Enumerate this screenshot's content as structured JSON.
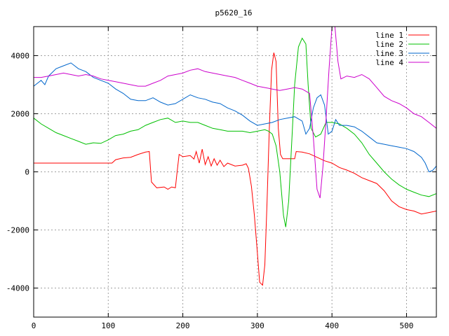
{
  "chart_data": {
    "type": "line",
    "title": "p5620_16",
    "xlabel": "",
    "ylabel": "",
    "xlim": [
      0,
      540
    ],
    "ylim": [
      -5000,
      5000
    ],
    "xticks": [
      0,
      100,
      200,
      300,
      400,
      500
    ],
    "yticks": [
      -4000,
      -2000,
      0,
      2000,
      4000
    ],
    "grid": true,
    "legend_position": "top-right",
    "series": [
      {
        "name": "line 1",
        "color": "#ff0000",
        "points": [
          [
            0,
            300
          ],
          [
            100,
            300
          ],
          [
            105,
            300
          ],
          [
            110,
            420
          ],
          [
            120,
            480
          ],
          [
            130,
            500
          ],
          [
            140,
            600
          ],
          [
            150,
            680
          ],
          [
            155,
            700
          ],
          [
            158,
            -350
          ],
          [
            165,
            -550
          ],
          [
            175,
            -520
          ],
          [
            180,
            -600
          ],
          [
            185,
            -520
          ],
          [
            190,
            -550
          ],
          [
            192,
            -80
          ],
          [
            195,
            600
          ],
          [
            200,
            520
          ],
          [
            210,
            560
          ],
          [
            215,
            440
          ],
          [
            218,
            700
          ],
          [
            222,
            300
          ],
          [
            226,
            780
          ],
          [
            230,
            250
          ],
          [
            234,
            520
          ],
          [
            238,
            200
          ],
          [
            242,
            450
          ],
          [
            246,
            230
          ],
          [
            250,
            400
          ],
          [
            255,
            180
          ],
          [
            260,
            300
          ],
          [
            270,
            200
          ],
          [
            280,
            230
          ],
          [
            285,
            280
          ],
          [
            288,
            120
          ],
          [
            292,
            -500
          ],
          [
            296,
            -1500
          ],
          [
            300,
            -2800
          ],
          [
            303,
            -3800
          ],
          [
            307,
            -3900
          ],
          [
            310,
            -3200
          ],
          [
            313,
            -1000
          ],
          [
            316,
            1500
          ],
          [
            319,
            3500
          ],
          [
            322,
            4100
          ],
          [
            325,
            3800
          ],
          [
            328,
            1500
          ],
          [
            331,
            600
          ],
          [
            334,
            450
          ],
          [
            350,
            450
          ],
          [
            352,
            700
          ],
          [
            360,
            680
          ],
          [
            370,
            620
          ],
          [
            380,
            500
          ],
          [
            390,
            380
          ],
          [
            400,
            300
          ],
          [
            410,
            150
          ],
          [
            420,
            60
          ],
          [
            430,
            -50
          ],
          [
            440,
            -200
          ],
          [
            450,
            -300
          ],
          [
            460,
            -400
          ],
          [
            470,
            -650
          ],
          [
            480,
            -1000
          ],
          [
            490,
            -1200
          ],
          [
            500,
            -1300
          ],
          [
            510,
            -1350
          ],
          [
            520,
            -1450
          ],
          [
            530,
            -1400
          ],
          [
            540,
            -1350
          ]
        ]
      },
      {
        "name": "line 2",
        "color": "#00c000",
        "points": [
          [
            0,
            1850
          ],
          [
            10,
            1650
          ],
          [
            20,
            1500
          ],
          [
            30,
            1350
          ],
          [
            40,
            1250
          ],
          [
            50,
            1150
          ],
          [
            60,
            1050
          ],
          [
            70,
            950
          ],
          [
            80,
            1000
          ],
          [
            90,
            980
          ],
          [
            100,
            1100
          ],
          [
            110,
            1250
          ],
          [
            120,
            1300
          ],
          [
            130,
            1400
          ],
          [
            140,
            1450
          ],
          [
            150,
            1600
          ],
          [
            160,
            1700
          ],
          [
            170,
            1800
          ],
          [
            180,
            1850
          ],
          [
            190,
            1700
          ],
          [
            200,
            1750
          ],
          [
            210,
            1700
          ],
          [
            220,
            1700
          ],
          [
            230,
            1600
          ],
          [
            240,
            1500
          ],
          [
            250,
            1450
          ],
          [
            260,
            1400
          ],
          [
            270,
            1400
          ],
          [
            280,
            1400
          ],
          [
            290,
            1350
          ],
          [
            300,
            1400
          ],
          [
            310,
            1450
          ],
          [
            315,
            1400
          ],
          [
            320,
            1300
          ],
          [
            325,
            900
          ],
          [
            330,
            0
          ],
          [
            335,
            -1500
          ],
          [
            338,
            -1900
          ],
          [
            342,
            -1000
          ],
          [
            346,
            1000
          ],
          [
            350,
            3000
          ],
          [
            355,
            4300
          ],
          [
            360,
            4600
          ],
          [
            365,
            4400
          ],
          [
            368,
            3000
          ],
          [
            372,
            1500
          ],
          [
            378,
            1200
          ],
          [
            385,
            1300
          ],
          [
            392,
            1700
          ],
          [
            400,
            1700
          ],
          [
            410,
            1650
          ],
          [
            420,
            1500
          ],
          [
            430,
            1300
          ],
          [
            440,
            1000
          ],
          [
            450,
            600
          ],
          [
            460,
            300
          ],
          [
            470,
            0
          ],
          [
            480,
            -250
          ],
          [
            490,
            -450
          ],
          [
            500,
            -600
          ],
          [
            510,
            -700
          ],
          [
            520,
            -800
          ],
          [
            530,
            -850
          ],
          [
            540,
            -750
          ]
        ]
      },
      {
        "name": "line 3",
        "color": "#0066cc",
        "points": [
          [
            0,
            2950
          ],
          [
            10,
            3150
          ],
          [
            15,
            3000
          ],
          [
            20,
            3300
          ],
          [
            30,
            3550
          ],
          [
            40,
            3650
          ],
          [
            50,
            3750
          ],
          [
            60,
            3550
          ],
          [
            70,
            3450
          ],
          [
            80,
            3250
          ],
          [
            90,
            3150
          ],
          [
            100,
            3050
          ],
          [
            110,
            2850
          ],
          [
            120,
            2700
          ],
          [
            130,
            2500
          ],
          [
            140,
            2450
          ],
          [
            150,
            2450
          ],
          [
            160,
            2550
          ],
          [
            170,
            2400
          ],
          [
            180,
            2300
          ],
          [
            190,
            2350
          ],
          [
            200,
            2500
          ],
          [
            210,
            2650
          ],
          [
            220,
            2550
          ],
          [
            230,
            2500
          ],
          [
            240,
            2400
          ],
          [
            250,
            2350
          ],
          [
            260,
            2200
          ],
          [
            270,
            2100
          ],
          [
            280,
            1950
          ],
          [
            290,
            1750
          ],
          [
            300,
            1600
          ],
          [
            310,
            1650
          ],
          [
            320,
            1700
          ],
          [
            330,
            1800
          ],
          [
            340,
            1850
          ],
          [
            350,
            1900
          ],
          [
            360,
            1750
          ],
          [
            365,
            1300
          ],
          [
            370,
            1500
          ],
          [
            375,
            2200
          ],
          [
            380,
            2550
          ],
          [
            385,
            2650
          ],
          [
            390,
            2300
          ],
          [
            395,
            1300
          ],
          [
            400,
            1400
          ],
          [
            405,
            1800
          ],
          [
            410,
            1600
          ],
          [
            420,
            1600
          ],
          [
            430,
            1550
          ],
          [
            440,
            1400
          ],
          [
            450,
            1200
          ],
          [
            460,
            1000
          ],
          [
            470,
            950
          ],
          [
            480,
            900
          ],
          [
            490,
            850
          ],
          [
            500,
            800
          ],
          [
            510,
            700
          ],
          [
            520,
            500
          ],
          [
            525,
            300
          ],
          [
            530,
            0
          ],
          [
            535,
            50
          ],
          [
            540,
            200
          ]
        ]
      },
      {
        "name": "line 4",
        "color": "#cc00cc",
        "points": [
          [
            0,
            3250
          ],
          [
            10,
            3250
          ],
          [
            20,
            3300
          ],
          [
            30,
            3350
          ],
          [
            40,
            3400
          ],
          [
            50,
            3350
          ],
          [
            60,
            3300
          ],
          [
            70,
            3350
          ],
          [
            80,
            3300
          ],
          [
            90,
            3200
          ],
          [
            100,
            3150
          ],
          [
            110,
            3100
          ],
          [
            120,
            3050
          ],
          [
            130,
            3000
          ],
          [
            140,
            2950
          ],
          [
            150,
            2950
          ],
          [
            160,
            3050
          ],
          [
            170,
            3150
          ],
          [
            180,
            3300
          ],
          [
            190,
            3350
          ],
          [
            200,
            3400
          ],
          [
            210,
            3500
          ],
          [
            220,
            3550
          ],
          [
            230,
            3450
          ],
          [
            240,
            3400
          ],
          [
            250,
            3350
          ],
          [
            260,
            3300
          ],
          [
            270,
            3250
          ],
          [
            280,
            3150
          ],
          [
            290,
            3050
          ],
          [
            300,
            2950
          ],
          [
            310,
            2900
          ],
          [
            320,
            2850
          ],
          [
            330,
            2800
          ],
          [
            340,
            2850
          ],
          [
            350,
            2900
          ],
          [
            360,
            2850
          ],
          [
            370,
            2700
          ],
          [
            375,
            1200
          ],
          [
            380,
            -600
          ],
          [
            384,
            -900
          ],
          [
            388,
            200
          ],
          [
            392,
            1800
          ],
          [
            396,
            3500
          ],
          [
            400,
            5000
          ],
          [
            404,
            5000
          ],
          [
            408,
            3800
          ],
          [
            412,
            3200
          ],
          [
            420,
            3300
          ],
          [
            430,
            3250
          ],
          [
            440,
            3350
          ],
          [
            450,
            3200
          ],
          [
            460,
            2900
          ],
          [
            470,
            2600
          ],
          [
            480,
            2450
          ],
          [
            490,
            2350
          ],
          [
            500,
            2200
          ],
          [
            510,
            2000
          ],
          [
            520,
            1900
          ],
          [
            530,
            1700
          ],
          [
            540,
            1500
          ]
        ]
      }
    ]
  }
}
